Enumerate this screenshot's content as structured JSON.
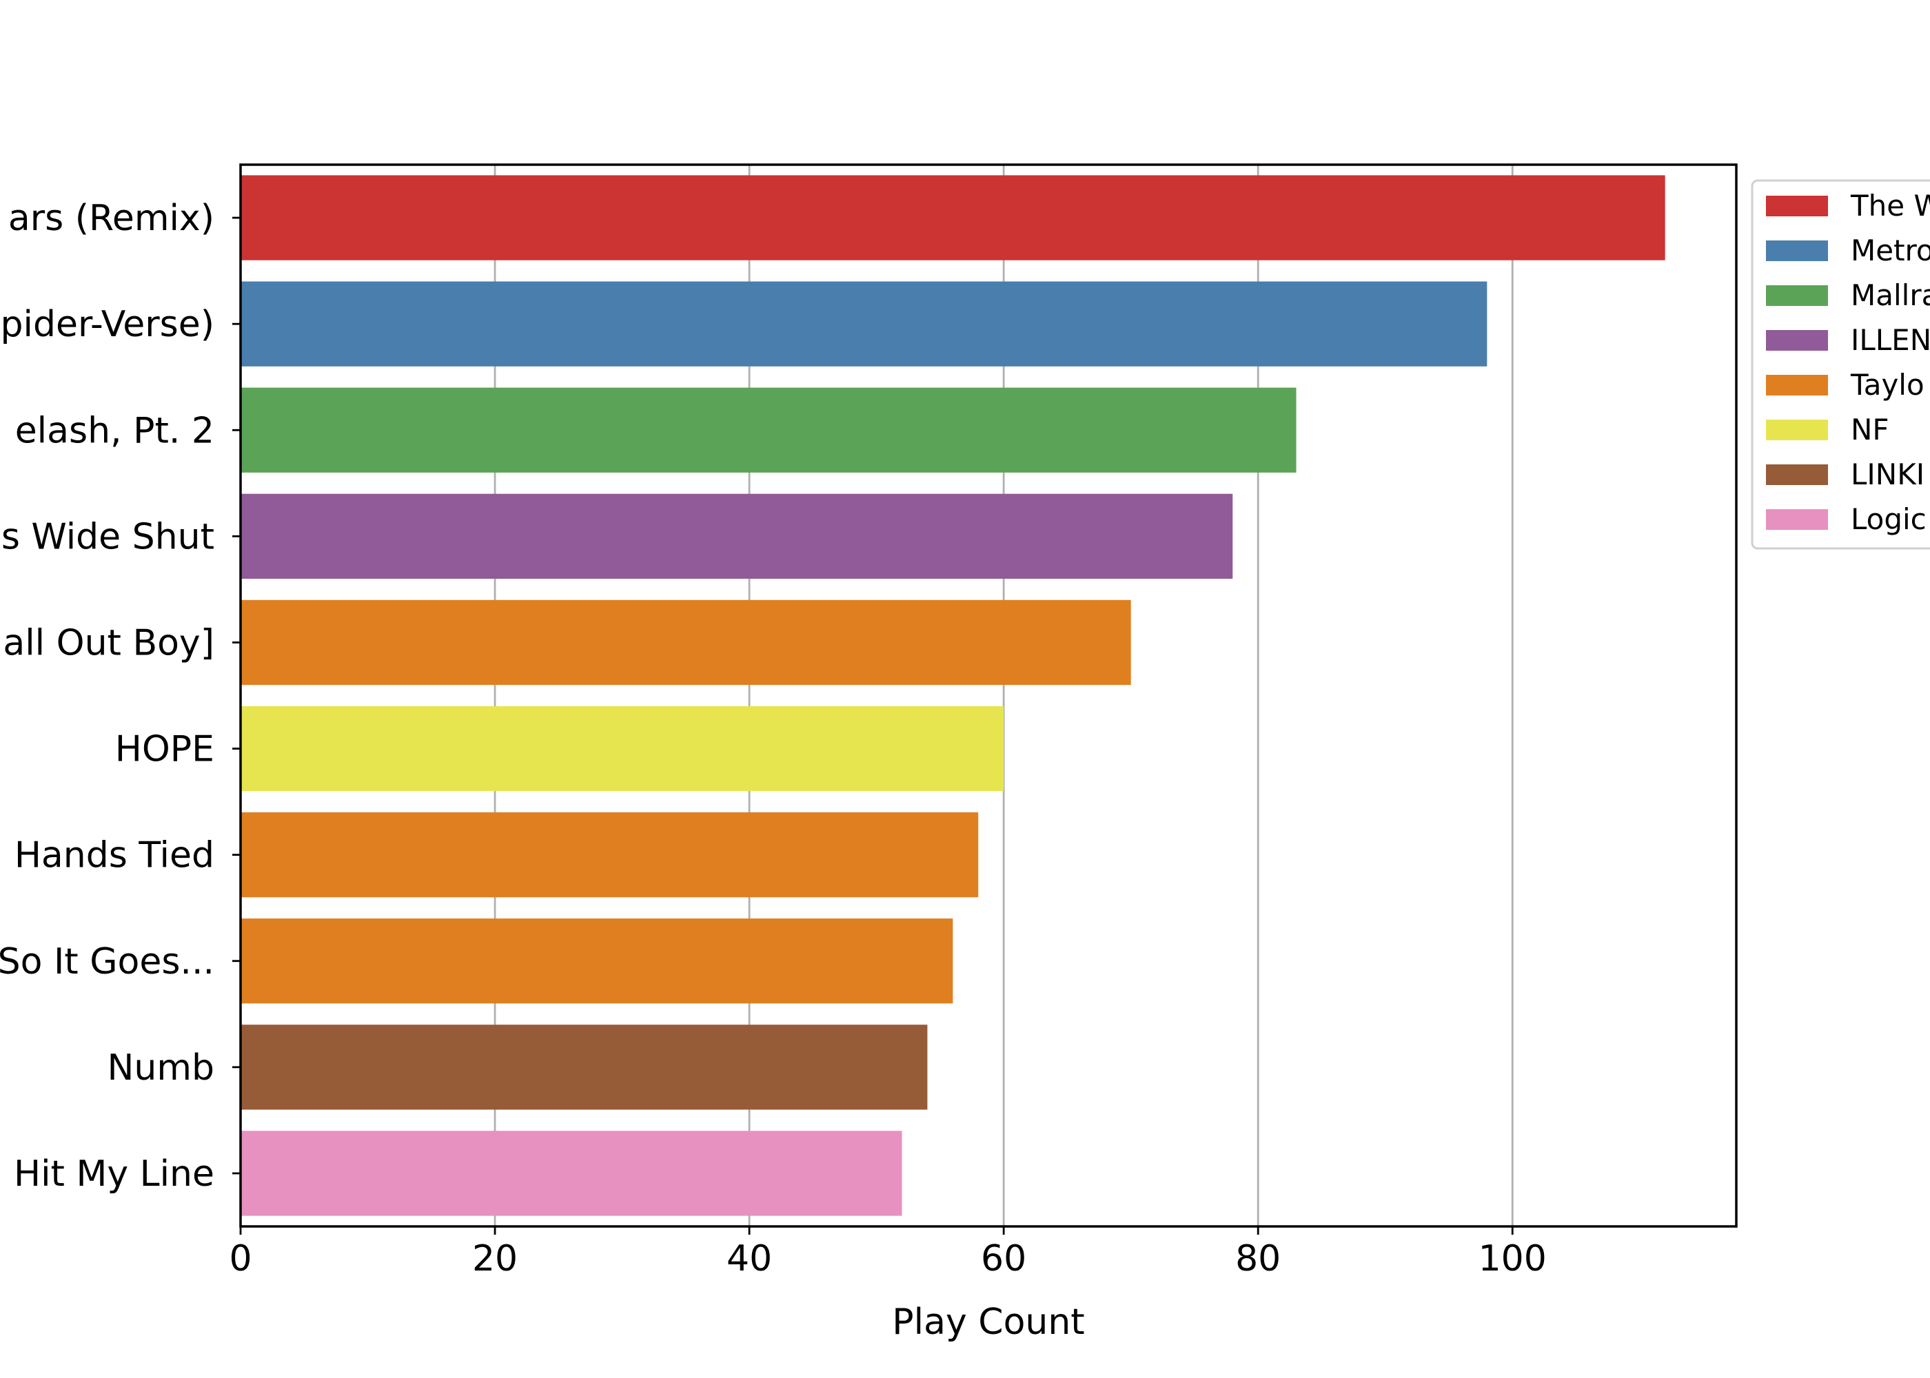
{
  "chart_data": {
    "type": "bar",
    "orientation": "horizontal",
    "title": "",
    "xlabel": "Play Count",
    "ylabel": "",
    "xlim": [
      0,
      117.6
    ],
    "xticks": [
      0,
      20,
      40,
      60,
      80,
      100
    ],
    "grid": "vertical",
    "legend_position": "upper-right, outside plot (cropped)",
    "categories": [
      "ars (Remix)",
      "pider-Verse)",
      "elash, Pt. 2",
      "s Wide Shut",
      "all Out Boy]",
      "HOPE",
      "Hands Tied",
      "So It Goes...",
      "Numb",
      "Hit My Line"
    ],
    "values": [
      112,
      98,
      83,
      78,
      70,
      60,
      58,
      56,
      54,
      52
    ],
    "bar_colors": [
      "#cc3333",
      "#4a7eac",
      "#5ba457",
      "#915a98",
      "#e07f20",
      "#e6e550",
      "#e07f20",
      "#e07f20",
      "#965b37",
      "#e791c0"
    ],
    "legend": [
      {
        "label": "The W",
        "color": "#cc3333"
      },
      {
        "label": "Metro",
        "color": "#4a7eac"
      },
      {
        "label": "Mallra",
        "color": "#5ba457"
      },
      {
        "label": "ILLEN",
        "color": "#915a98"
      },
      {
        "label": "Taylo",
        "color": "#e07f20"
      },
      {
        "label": "NF",
        "color": "#e6e550"
      },
      {
        "label": "LINKI",
        "color": "#965b37"
      },
      {
        "label": "Logic",
        "color": "#e791c0"
      }
    ]
  }
}
